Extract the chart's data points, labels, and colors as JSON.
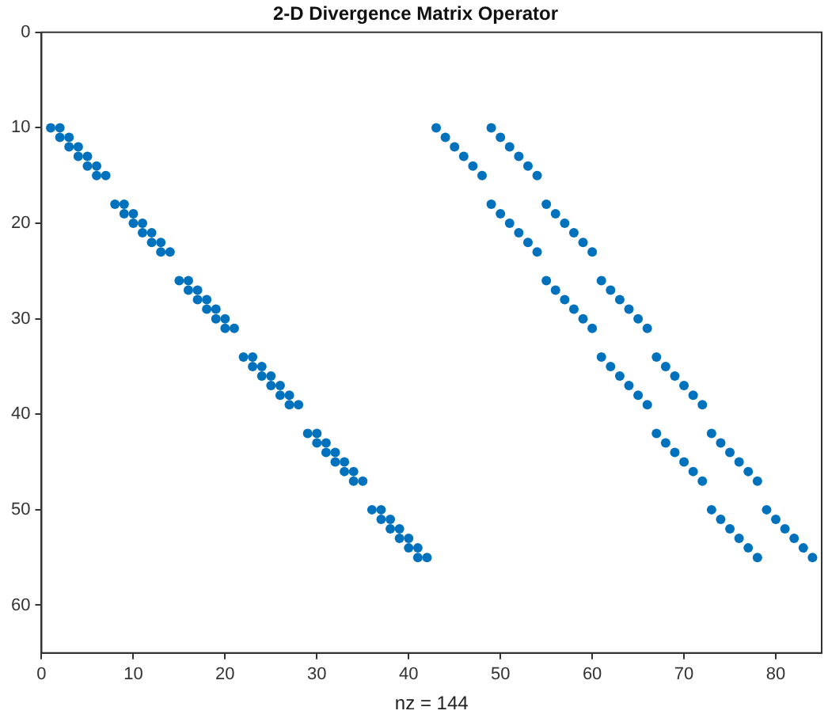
{
  "chart_data": {
    "type": "scatter",
    "title": "2-D Divergence Matrix Operator",
    "xlabel": "nz = 144",
    "x": [
      1,
      2,
      43,
      49,
      2,
      3,
      44,
      50,
      3,
      4,
      45,
      51,
      4,
      5,
      46,
      52,
      5,
      6,
      47,
      53,
      6,
      7,
      48,
      54,
      8,
      9,
      49,
      55,
      9,
      10,
      50,
      56,
      10,
      11,
      51,
      57,
      11,
      12,
      52,
      58,
      12,
      13,
      53,
      59,
      13,
      14,
      54,
      60,
      15,
      16,
      55,
      61,
      16,
      17,
      56,
      62,
      17,
      18,
      57,
      63,
      18,
      19,
      58,
      64,
      19,
      20,
      59,
      65,
      20,
      21,
      60,
      66,
      22,
      23,
      61,
      67,
      23,
      24,
      62,
      68,
      24,
      25,
      63,
      69,
      25,
      26,
      64,
      70,
      26,
      27,
      65,
      71,
      27,
      28,
      66,
      72,
      29,
      30,
      67,
      73,
      30,
      31,
      68,
      74,
      31,
      32,
      69,
      75,
      32,
      33,
      70,
      76,
      33,
      34,
      71,
      77,
      34,
      35,
      72,
      78,
      36,
      37,
      73,
      79,
      37,
      38,
      74,
      80,
      38,
      39,
      75,
      81,
      39,
      40,
      76,
      82,
      40,
      41,
      77,
      83,
      41,
      42,
      78,
      84
    ],
    "values": [
      10,
      10,
      10,
      10,
      11,
      11,
      11,
      11,
      12,
      12,
      12,
      12,
      13,
      13,
      13,
      13,
      14,
      14,
      14,
      14,
      15,
      15,
      15,
      15,
      18,
      18,
      18,
      18,
      19,
      19,
      19,
      19,
      20,
      20,
      20,
      20,
      21,
      21,
      21,
      21,
      22,
      22,
      22,
      22,
      23,
      23,
      23,
      23,
      26,
      26,
      26,
      26,
      27,
      27,
      27,
      27,
      28,
      28,
      28,
      28,
      29,
      29,
      29,
      29,
      30,
      30,
      30,
      30,
      31,
      31,
      31,
      31,
      34,
      34,
      34,
      34,
      35,
      35,
      35,
      35,
      36,
      36,
      36,
      36,
      37,
      37,
      37,
      37,
      38,
      38,
      38,
      38,
      39,
      39,
      39,
      39,
      42,
      42,
      42,
      42,
      43,
      43,
      43,
      43,
      44,
      44,
      44,
      44,
      45,
      45,
      45,
      45,
      46,
      46,
      46,
      46,
      47,
      47,
      47,
      47,
      50,
      50,
      50,
      50,
      51,
      51,
      51,
      51,
      52,
      52,
      52,
      52,
      53,
      53,
      53,
      53,
      54,
      54,
      54,
      54,
      55,
      55,
      55,
      55
    ],
    "color": "#0072bd",
    "marker": "circle",
    "xlim": [
      0,
      85
    ],
    "xticks": [
      0,
      10,
      20,
      30,
      40,
      50,
      60,
      70,
      80
    ],
    "ylim": [
      65,
      0
    ],
    "yticks": [
      0,
      10,
      20,
      30,
      40,
      50,
      60
    ]
  }
}
